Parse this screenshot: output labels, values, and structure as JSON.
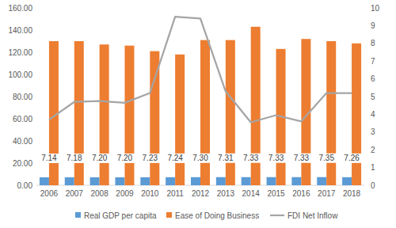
{
  "chart_data": {
    "type": "bar",
    "categories": [
      "2006",
      "2007",
      "2008",
      "2009",
      "2010",
      "2011",
      "2012",
      "2013",
      "2014",
      "2015",
      "2016",
      "2017",
      "2018"
    ],
    "series": [
      {
        "name": "Real GDP per capita",
        "color": "#5b9bd5",
        "type": "bar",
        "data_labels": true,
        "values": [
          7.14,
          7.18,
          7.2,
          7.2,
          7.23,
          7.24,
          7.3,
          7.31,
          7.33,
          7.33,
          7.33,
          7.35,
          7.26
        ],
        "value_labels": [
          "7.14",
          "7.18",
          "7.20",
          "7.20",
          "7.23",
          "7.24",
          "7.30",
          "7.31",
          "7.33",
          "7.33",
          "7.33",
          "7.35",
          "7.26"
        ]
      },
      {
        "name": "Ease of Doing Business",
        "color": "#ed7d31",
        "type": "bar",
        "values": [
          130,
          130,
          127,
          126,
          121,
          118,
          131,
          131,
          143,
          123,
          132,
          130,
          128
        ]
      },
      {
        "name": "FDI Net Inflow",
        "color": "#a5a5a5",
        "type": "line",
        "axis": "y2",
        "values": [
          3.7,
          4.7,
          4.75,
          4.65,
          5.2,
          9.5,
          9.4,
          5.3,
          3.55,
          3.95,
          3.6,
          5.2,
          5.2
        ]
      }
    ],
    "ylim": [
      0,
      160
    ],
    "yticks": [
      {
        "value": 0,
        "label": "0.00"
      },
      {
        "value": 20,
        "label": "20.00"
      },
      {
        "value": 40,
        "label": "40.00"
      },
      {
        "value": 60,
        "label": "60.00"
      },
      {
        "value": 80,
        "label": "80.00"
      },
      {
        "value": 100,
        "label": "100.00"
      },
      {
        "value": 120,
        "label": "120.00"
      },
      {
        "value": 140,
        "label": "140.00"
      },
      {
        "value": 160,
        "label": "160.00"
      }
    ],
    "y2lim": [
      0,
      10
    ],
    "y2ticks": [
      0,
      1,
      2,
      3,
      4,
      5,
      6,
      7,
      8,
      9,
      10
    ],
    "grid": false,
    "legend": "bottom"
  }
}
